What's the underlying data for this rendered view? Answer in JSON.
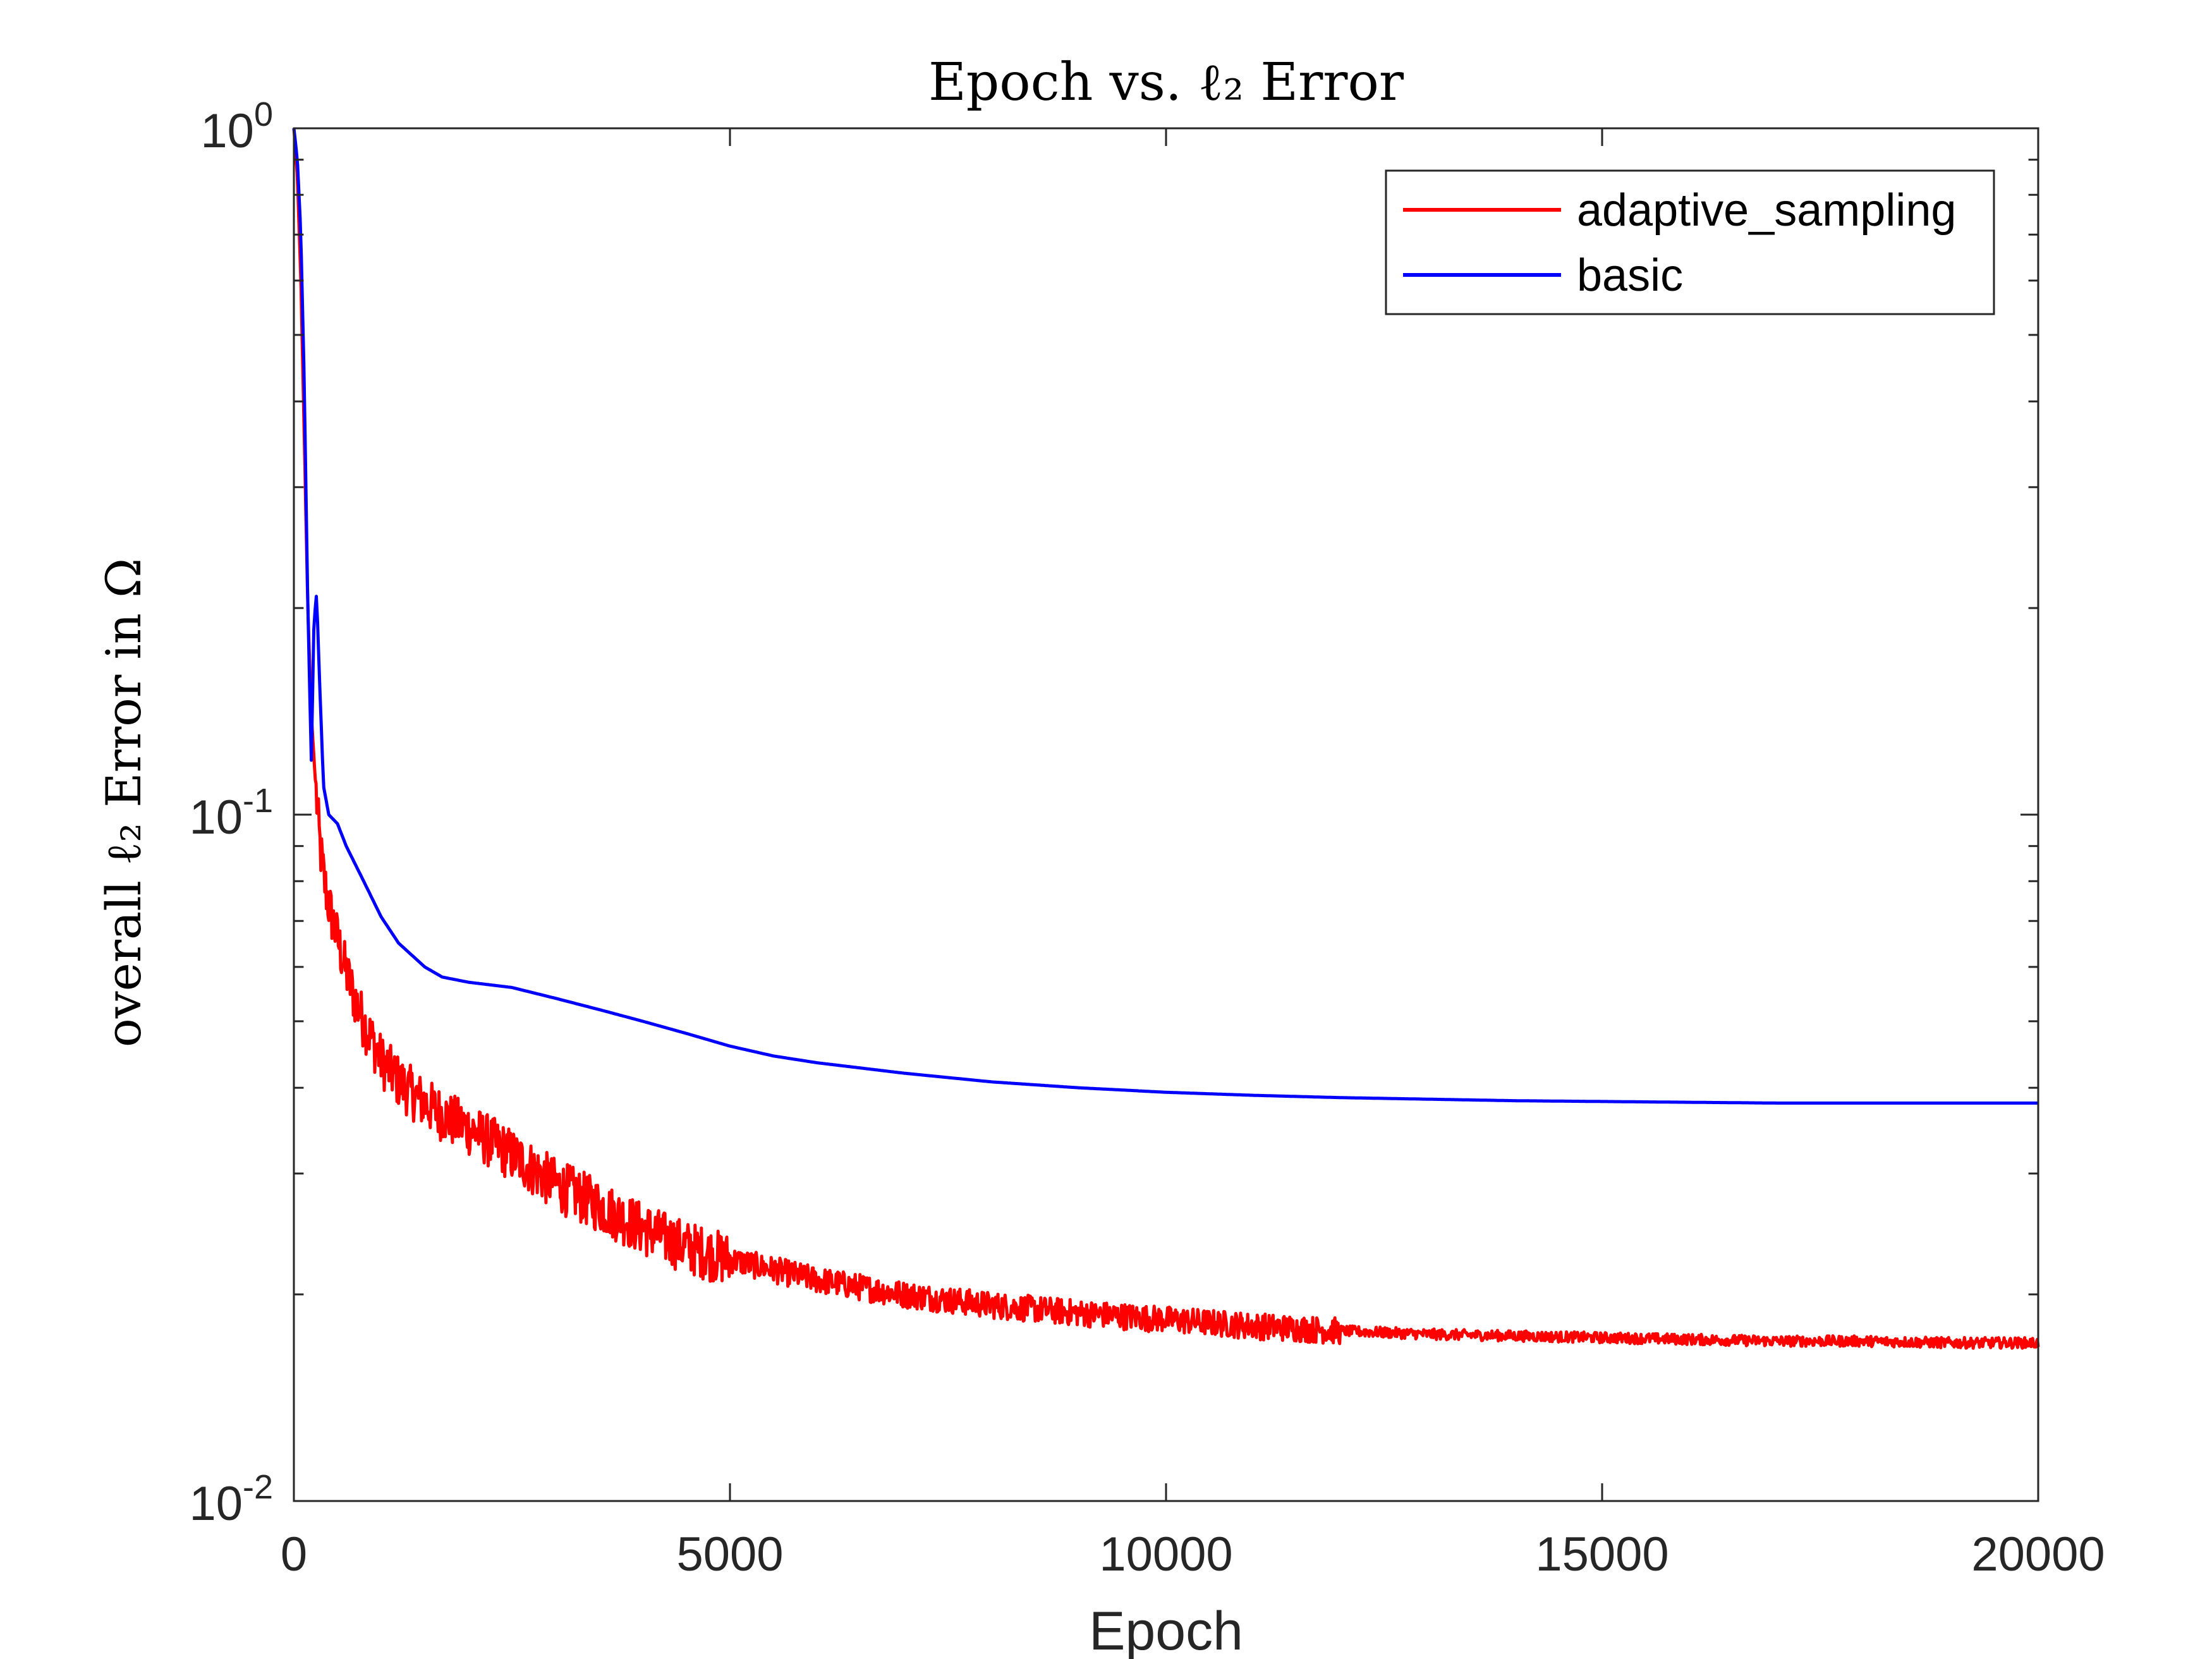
{
  "chart_data": {
    "type": "line",
    "title": "Epoch vs. ℓ₂ Error",
    "xlabel": "Epoch",
    "ylabel": "overall ℓ₂ Error in Ω",
    "xlim": [
      0,
      20000
    ],
    "ylim": [
      0.01,
      1
    ],
    "yscale": "log",
    "x_ticks": [
      0,
      5000,
      10000,
      15000,
      20000
    ],
    "x_tick_labels": [
      "0",
      "5000",
      "10000",
      "15000",
      "20000"
    ],
    "y_ticks": [
      0.01,
      0.1,
      1
    ],
    "y_tick_labels": [
      {
        "base": "10",
        "exp": "-2"
      },
      {
        "base": "10",
        "exp": "-1"
      },
      {
        "base": "10",
        "exp": "0"
      }
    ],
    "grid": false,
    "legend_position": "top-right",
    "series": [
      {
        "name": "adaptive_sampling",
        "color": "#ff0000",
        "noisy": true,
        "x": [
          0,
          40,
          80,
          120,
          160,
          200,
          250,
          300,
          350,
          400,
          500,
          600,
          700,
          800,
          1000,
          1200,
          1500,
          1800,
          2000,
          2500,
          3000,
          3500,
          4000,
          4500,
          5000,
          6000,
          7000,
          8000,
          9000,
          10000,
          11000,
          12000,
          13000,
          14000,
          15000,
          16000,
          17000,
          18000,
          19000,
          20000
        ],
        "y": [
          1.0,
          0.85,
          0.6,
          0.35,
          0.2,
          0.14,
          0.11,
          0.09,
          0.08,
          0.074,
          0.066,
          0.059,
          0.054,
          0.05,
          0.044,
          0.041,
          0.038,
          0.036,
          0.035,
          0.032,
          0.029,
          0.027,
          0.025,
          0.0235,
          0.0225,
          0.021,
          0.02,
          0.0193,
          0.0188,
          0.0184,
          0.018,
          0.0177,
          0.0175,
          0.0174,
          0.0173,
          0.0172,
          0.0171,
          0.0171,
          0.017,
          0.017
        ]
      },
      {
        "name": "basic",
        "color": "#0000ff",
        "noisy": false,
        "x": [
          0,
          40,
          80,
          120,
          160,
          200,
          230,
          260,
          300,
          340,
          400,
          500,
          600,
          800,
          1000,
          1200,
          1500,
          1700,
          2000,
          2500,
          3000,
          3500,
          4000,
          4500,
          5000,
          5500,
          6000,
          7000,
          8000,
          9000,
          10000,
          11000,
          12000,
          13000,
          14000,
          15000,
          16000,
          17000,
          18000,
          19000,
          20000
        ],
        "y": [
          1.0,
          0.9,
          0.7,
          0.42,
          0.2,
          0.12,
          0.19,
          0.21,
          0.15,
          0.11,
          0.1,
          0.097,
          0.09,
          0.08,
          0.071,
          0.065,
          0.06,
          0.058,
          0.057,
          0.056,
          0.054,
          0.052,
          0.05,
          0.048,
          0.046,
          0.0445,
          0.0435,
          0.042,
          0.0408,
          0.04,
          0.0394,
          0.039,
          0.0387,
          0.0385,
          0.0383,
          0.0382,
          0.0381,
          0.038,
          0.038,
          0.038,
          0.038
        ]
      }
    ]
  }
}
